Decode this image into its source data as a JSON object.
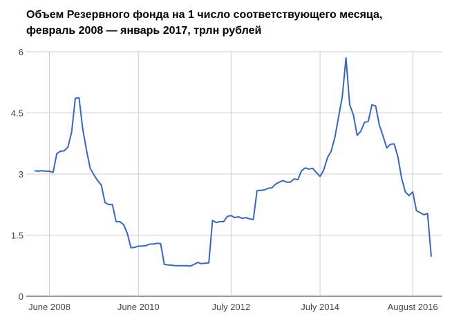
{
  "chart_data": {
    "type": "line",
    "title": [
      "Объем Резервного фонда на 1 число соответствующего месяца,",
      "февраль 2008 — январь 2017, трлн рублей"
    ],
    "x": [
      "2008-02",
      "2008-03",
      "2008-04",
      "2008-05",
      "2008-06",
      "2008-07",
      "2008-08",
      "2008-09",
      "2008-10",
      "2008-11",
      "2008-12",
      "2009-01",
      "2009-02",
      "2009-03",
      "2009-04",
      "2009-05",
      "2009-06",
      "2009-07",
      "2009-08",
      "2009-09",
      "2009-10",
      "2009-11",
      "2009-12",
      "2010-01",
      "2010-02",
      "2010-03",
      "2010-04",
      "2010-05",
      "2010-06",
      "2010-07",
      "2010-08",
      "2010-09",
      "2010-10",
      "2010-11",
      "2010-12",
      "2011-01",
      "2011-02",
      "2011-03",
      "2011-04",
      "2011-05",
      "2011-06",
      "2011-07",
      "2011-08",
      "2011-09",
      "2011-10",
      "2011-11",
      "2011-12",
      "2012-01",
      "2012-02",
      "2012-03",
      "2012-04",
      "2012-05",
      "2012-06",
      "2012-07",
      "2012-08",
      "2012-09",
      "2012-10",
      "2012-11",
      "2012-12",
      "2013-01",
      "2013-02",
      "2013-03",
      "2013-04",
      "2013-05",
      "2013-06",
      "2013-07",
      "2013-08",
      "2013-09",
      "2013-10",
      "2013-11",
      "2013-12",
      "2014-01",
      "2014-02",
      "2014-03",
      "2014-04",
      "2014-05",
      "2014-06",
      "2014-07",
      "2014-08",
      "2014-09",
      "2014-10",
      "2014-11",
      "2014-12",
      "2015-01",
      "2015-02",
      "2015-03",
      "2015-04",
      "2015-05",
      "2015-06",
      "2015-07",
      "2015-08",
      "2015-09",
      "2015-10",
      "2015-11",
      "2015-12",
      "2016-01",
      "2016-02",
      "2016-03",
      "2016-04",
      "2016-05",
      "2016-06",
      "2016-07",
      "2016-08",
      "2016-09",
      "2016-10",
      "2016-11",
      "2016-12",
      "2017-01"
    ],
    "values": [
      3.08,
      3.07,
      3.08,
      3.07,
      3.07,
      3.04,
      3.5,
      3.56,
      3.57,
      3.66,
      4.03,
      4.86,
      4.87,
      4.1,
      3.59,
      3.14,
      2.98,
      2.84,
      2.73,
      2.3,
      2.25,
      2.25,
      1.83,
      1.83,
      1.76,
      1.55,
      1.19,
      1.2,
      1.23,
      1.23,
      1.24,
      1.28,
      1.28,
      1.3,
      1.29,
      0.78,
      0.77,
      0.76,
      0.75,
      0.75,
      0.75,
      0.75,
      0.74,
      0.78,
      0.83,
      0.8,
      0.81,
      0.82,
      1.86,
      1.81,
      1.83,
      1.83,
      1.96,
      1.98,
      1.93,
      1.95,
      1.91,
      1.93,
      1.9,
      1.88,
      2.59,
      2.6,
      2.61,
      2.65,
      2.66,
      2.75,
      2.8,
      2.84,
      2.8,
      2.8,
      2.88,
      2.86,
      3.08,
      3.15,
      3.12,
      3.14,
      3.04,
      2.94,
      3.1,
      3.4,
      3.56,
      3.9,
      4.4,
      4.9,
      5.85,
      4.7,
      4.45,
      3.95,
      4.05,
      4.27,
      4.29,
      4.7,
      4.67,
      4.2,
      3.93,
      3.64,
      3.73,
      3.74,
      3.42,
      2.9,
      2.56,
      2.47,
      2.56,
      2.1,
      2.05,
      2.0,
      2.03,
      0.97
    ],
    "color": "#3366cc",
    "ylim": [
      0,
      6
    ],
    "yticks": [
      0,
      1.5,
      3,
      4.5,
      6
    ],
    "xticks": [
      {
        "value": "2008-06",
        "label": "June 2008"
      },
      {
        "value": "2010-06",
        "label": "June 2010"
      },
      {
        "value": "2012-07",
        "label": "July 2012"
      },
      {
        "value": "2014-07",
        "label": "July 2014"
      },
      {
        "value": "2016-08",
        "label": "August 2016"
      }
    ],
    "grid": true
  }
}
